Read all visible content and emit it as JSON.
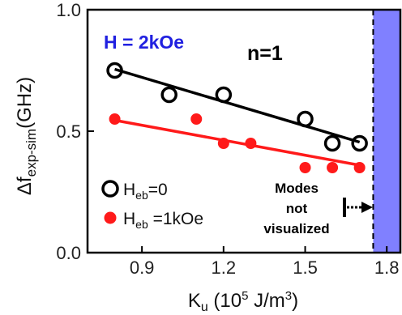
{
  "chart_data": {
    "type": "scatter",
    "xlabel": {
      "main": "K",
      "sub": "u",
      "rest": " (10",
      "sup": "5",
      "rest2": " J/m",
      "sup2": "3",
      "end": ")"
    },
    "ylabel": {
      "main": "Δf",
      "sub": "exp-sim",
      "rest": "(GHz)"
    },
    "xlim": [
      0.7,
      1.85
    ],
    "ylim": [
      0.0,
      1.0
    ],
    "xticks": [
      "0.9",
      "1.2",
      "1.5",
      "1.8"
    ],
    "xtick_values": [
      0.9,
      1.2,
      1.5,
      1.8
    ],
    "yticks": [
      "0.0",
      "0.5",
      "1.0"
    ],
    "ytick_values": [
      0.0,
      0.5,
      1.0
    ],
    "grid": false,
    "legend_position": "bottom-left",
    "series": [
      {
        "name": "H_eb=0",
        "legend": {
          "main": "H",
          "sub": "eb",
          "rest": "=0"
        },
        "marker": "open-circle",
        "color": "#000000",
        "x": [
          0.8,
          1.0,
          1.2,
          1.5,
          1.6,
          1.7
        ],
        "y": [
          0.75,
          0.65,
          0.65,
          0.55,
          0.45,
          0.45
        ],
        "fit": {
          "x": [
            0.8,
            1.7
          ],
          "y": [
            0.755,
            0.455
          ]
        }
      },
      {
        "name": "H_eb=1kOe",
        "legend": {
          "main": "H",
          "sub": "eb",
          "rest": " =1kOe"
        },
        "marker": "filled-circle",
        "color": "#ff1a1a",
        "x": [
          0.8,
          1.1,
          1.2,
          1.3,
          1.5,
          1.6,
          1.7
        ],
        "y": [
          0.55,
          0.55,
          0.45,
          0.45,
          0.35,
          0.35,
          0.35
        ],
        "fit": {
          "x": [
            0.8,
            1.7
          ],
          "y": [
            0.545,
            0.36
          ]
        }
      }
    ],
    "shaded_region": {
      "x_start": 1.75,
      "color": "#8080ff"
    },
    "annotations": {
      "field": "H = 2kOe",
      "n": "n=1",
      "modes": [
        "Modes",
        "not",
        "visualized"
      ]
    }
  }
}
